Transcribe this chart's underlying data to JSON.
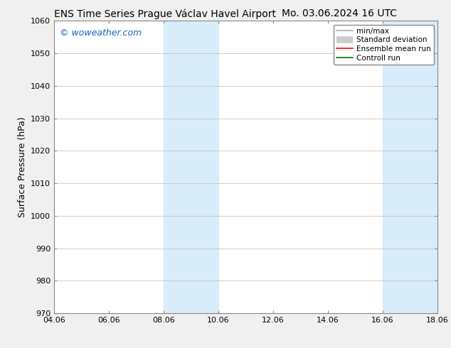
{
  "title_left": "ENS Time Series Prague Václav Havel Airport",
  "title_right": "Mo. 03.06.2024 16 UTC",
  "ylabel": "Surface Pressure (hPa)",
  "ylim": [
    970,
    1060
  ],
  "yticks": [
    970,
    980,
    990,
    1000,
    1010,
    1020,
    1030,
    1040,
    1050,
    1060
  ],
  "xtick_labels": [
    "04.06",
    "06.06",
    "08.06",
    "10.06",
    "12.06",
    "14.06",
    "16.06",
    "18.06"
  ],
  "xtick_positions": [
    0,
    2,
    4,
    6,
    8,
    10,
    12,
    14
  ],
  "x_min": 0,
  "x_max": 14,
  "watermark": "© woweather.com",
  "watermark_color": "#1565C0",
  "shaded_regions": [
    {
      "x_start": 4,
      "x_end": 6,
      "color": "#d8ecfa"
    },
    {
      "x_start": 12,
      "x_end": 14,
      "color": "#d8ecfa"
    }
  ],
  "legend_items": [
    {
      "label": "min/max",
      "color": "#aaaaaa",
      "lw": 1.2,
      "ls": "-",
      "thick": false
    },
    {
      "label": "Standard deviation",
      "color": "#cccccc",
      "lw": 7,
      "ls": "-",
      "thick": true
    },
    {
      "label": "Ensemble mean run",
      "color": "#ff0000",
      "lw": 1.2,
      "ls": "-",
      "thick": false
    },
    {
      "label": "Controll run",
      "color": "#007700",
      "lw": 1.2,
      "ls": "-",
      "thick": false
    }
  ],
  "bg_color": "#f0f0f0",
  "plot_bg_color": "#ffffff",
  "grid_color": "#bbbbbb",
  "spine_color": "#888888",
  "title_fontsize": 10,
  "axis_label_fontsize": 9,
  "tick_fontsize": 8,
  "watermark_fontsize": 9,
  "legend_fontsize": 7.5
}
